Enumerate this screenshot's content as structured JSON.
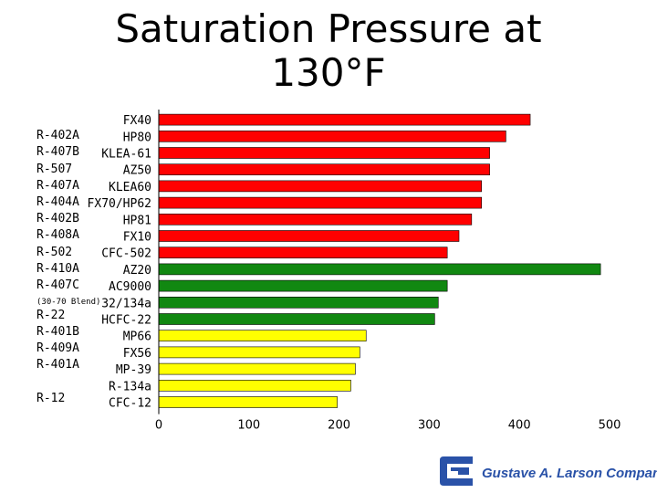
{
  "page": {
    "title_line1": "Saturation Pressure at",
    "title_line2": "130°F",
    "company": "Gustave A. Larson Company"
  },
  "left_labels": [
    {
      "text": "R-402A",
      "row": 1
    },
    {
      "text": "R-407B",
      "row": 2
    },
    {
      "text": "R-507",
      "row": 3
    },
    {
      "text": "R-407A",
      "row": 4
    },
    {
      "text": "R-404A",
      "row": 5
    },
    {
      "text": "R-402B",
      "row": 6
    },
    {
      "text": "R-408A",
      "row": 7
    },
    {
      "text": "R-502",
      "row": 8
    },
    {
      "text": "R-410A",
      "row": 9
    },
    {
      "text": "R-407C",
      "row": 10
    },
    {
      "text": "(30-70 Blend)",
      "row": 11,
      "small": true
    },
    {
      "text": "R-22",
      "row": 11.8
    },
    {
      "text": "R-401B",
      "row": 12.8
    },
    {
      "text": "R-409A",
      "row": 13.8
    },
    {
      "text": "R-401A",
      "row": 14.8
    },
    {
      "text": "R-12",
      "row": 16.8
    }
  ],
  "colors": {
    "red": "#ff0000",
    "green": "#118811",
    "yellow": "#ffff00",
    "axis": "#000000"
  },
  "chart_data": {
    "type": "bar",
    "orientation": "horizontal",
    "title": "Saturation Pressure at 130°F",
    "categories": [
      "FX40",
      "HP80",
      "KLEA-61",
      "AZ50",
      "KLEA60",
      "FX70/HP62",
      "HP81",
      "FX10",
      "CFC-502",
      "AZ20",
      "AC9000",
      "32/134a",
      "HCFC-22",
      "MP66",
      "FX56",
      "MP-39",
      "R-134a",
      "CFC-12"
    ],
    "values": [
      412,
      385,
      367,
      367,
      358,
      358,
      347,
      333,
      320,
      490,
      320,
      310,
      306,
      230,
      223,
      218,
      213,
      198
    ],
    "bar_colors": [
      "red",
      "red",
      "red",
      "red",
      "red",
      "red",
      "red",
      "red",
      "red",
      "green",
      "green",
      "green",
      "green",
      "yellow",
      "yellow",
      "yellow",
      "yellow",
      "yellow"
    ],
    "xlim": [
      0,
      500
    ],
    "xticks": [
      0,
      100,
      200,
      300,
      400,
      500
    ],
    "grid": false
  }
}
